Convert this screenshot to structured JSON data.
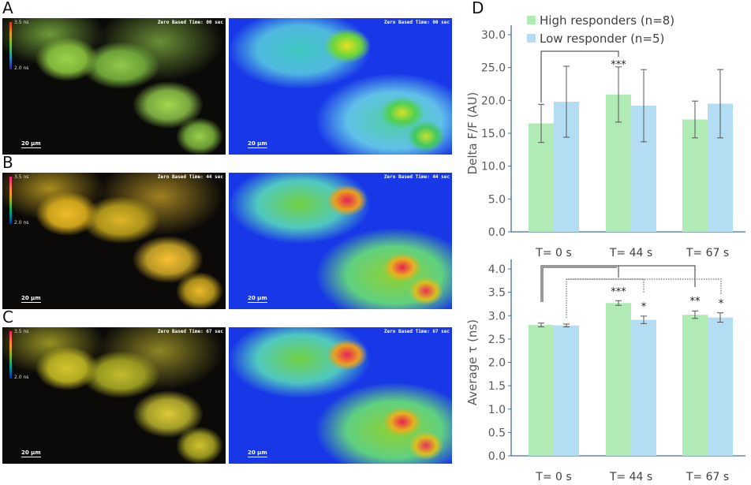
{
  "panels": {
    "A": {
      "label": "A",
      "timestamp": "Zero Based Time: 00 sec"
    },
    "B": {
      "label": "B",
      "timestamp": "Zero Based Time: 44 sec"
    },
    "C": {
      "label": "C",
      "timestamp": "Zero Based Time: 67 sec"
    },
    "D": {
      "label": "D"
    },
    "scale_bar": "20 μm",
    "colorbar_max": "3.5 ns",
    "colorbar_min": "2.0 ns"
  },
  "chart_data": [
    {
      "type": "bar",
      "categories": [
        "T= 0 s",
        "T= 44 s",
        "T= 67 s"
      ],
      "ylabel": "Delta F/F (AU)",
      "ylim": [
        0,
        30
      ],
      "yticks": [
        "0.0",
        "5.0",
        "10.0",
        "15.0",
        "20.0",
        "25.0",
        "30.0"
      ],
      "legend_position": "top-left",
      "series": [
        {
          "name": "High responders (n=8)",
          "color": "#b0ebb6",
          "values": [
            16.5,
            20.9,
            17.1
          ],
          "errors": [
            2.9,
            4.2,
            2.8
          ]
        },
        {
          "name": "Low responder (n=5)",
          "color": "#b3ddf2",
          "values": [
            19.8,
            19.2,
            19.5
          ],
          "errors": [
            5.4,
            5.5,
            5.2
          ]
        }
      ],
      "annotations": [
        {
          "text": "***",
          "compare": [
            "T= 0 s High",
            "T= 44 s High"
          ]
        }
      ]
    },
    {
      "type": "bar",
      "categories": [
        "T= 0 s",
        "T= 44 s",
        "T= 67 s"
      ],
      "ylabel": "Average τ (ns)",
      "ylim": [
        0,
        4
      ],
      "yticks": [
        "0.0",
        "0.5",
        "1.0",
        "1.5",
        "2.0",
        "2.5",
        "3.0",
        "3.5",
        "4.0"
      ],
      "series": [
        {
          "color": "#b0ebb6",
          "values": [
            2.8,
            3.27,
            3.02
          ],
          "errors": [
            0.04,
            0.05,
            0.08
          ]
        },
        {
          "color": "#b3ddf2",
          "values": [
            2.79,
            2.91,
            2.96
          ],
          "errors": [
            0.03,
            0.08,
            0.1
          ]
        }
      ],
      "annotations": [
        {
          "text": "***",
          "compare": [
            "T= 0 s High",
            "T= 44 s High"
          ]
        },
        {
          "text": "**",
          "compare": [
            "T= 0 s High",
            "T= 67 s High"
          ]
        },
        {
          "text": "*",
          "compare": [
            "T= 0 s Low",
            "T= 44 s Low"
          ]
        },
        {
          "text": "*",
          "compare": [
            "T= 0 s Low",
            "T= 67 s Low"
          ]
        }
      ]
    }
  ]
}
